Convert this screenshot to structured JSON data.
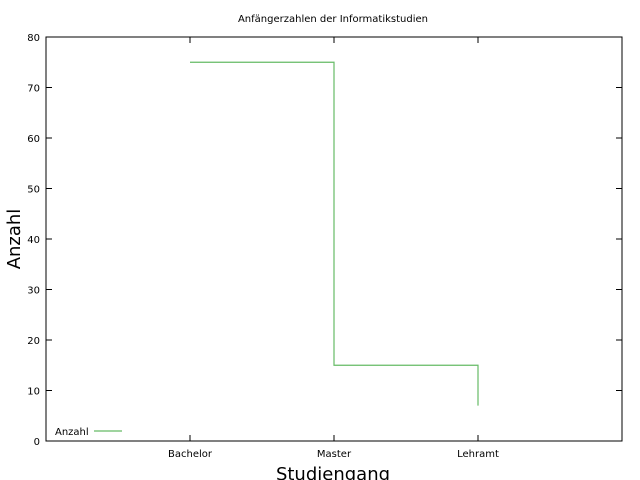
{
  "chart_data": {
    "type": "line",
    "step": true,
    "title": "Anfängerzahlen der Informatikstudien",
    "xlabel": "Studiengang",
    "ylabel": "Anzahl",
    "categories": [
      "Bachelor",
      "Master",
      "Lehramt"
    ],
    "ylim": [
      0,
      80
    ],
    "yticks": [
      0,
      10,
      20,
      30,
      40,
      50,
      60,
      70,
      80
    ],
    "series": [
      {
        "name": "Anzahl",
        "values": [
          75,
          15,
          7
        ],
        "color": "#66bb66"
      }
    ],
    "legend_position": "bottom-left",
    "grid": false
  }
}
